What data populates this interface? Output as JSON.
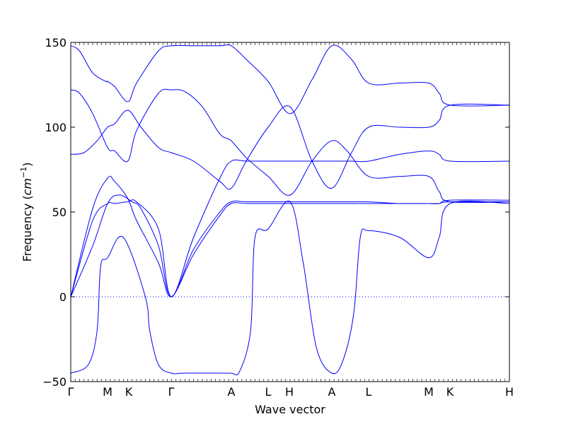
{
  "chart_data": {
    "type": "line",
    "title": "",
    "xlabel": "Wave vector",
    "ylabel_prefix": "Frequency (",
    "ylabel_unit_base": "cm",
    "ylabel_unit_exp": "−1",
    "ylabel_suffix": ")",
    "ylim": [
      -50,
      150
    ],
    "yticks": [
      -50,
      0,
      50,
      100,
      150
    ],
    "ytick_labels": [
      "−50",
      "0",
      "50",
      "100",
      "150"
    ],
    "grid": false,
    "line_color": "#0000ff",
    "zero_line": {
      "y": 0,
      "style": "dotted",
      "color": "#0000ff"
    },
    "x_labels": [
      {
        "label": "Γ",
        "x": 0.0
      },
      {
        "label": "M",
        "x": 0.0839
      },
      {
        "label": "K",
        "x": 0.1323
      },
      {
        "label": "Γ",
        "x": 0.229
      },
      {
        "label": "A",
        "x": 0.3661
      },
      {
        "label": "L",
        "x": 0.45
      },
      {
        "label": "H",
        "x": 0.4984
      },
      {
        "label": "A",
        "x": 0.5952
      },
      {
        "label": "L",
        "x": 0.679
      },
      {
        "label": "M",
        "x": 0.8161
      },
      {
        "label": "K",
        "x": 0.8645
      },
      {
        "label": "H",
        "x": 1.0
      }
    ],
    "series": [
      {
        "values_x": [
          0,
          0.02,
          0.05,
          0.08,
          0.084,
          0.1,
          0.13,
          0.15,
          0.2,
          0.229,
          0.28,
          0.34,
          0.366,
          0.4,
          0.45,
          0.5,
          0.55,
          0.595,
          0.64,
          0.679,
          0.75,
          0.816,
          0.84,
          0.865,
          1.0
        ],
        "values_y": [
          148,
          145,
          132,
          127,
          127,
          124,
          115,
          126,
          145,
          148,
          148,
          148,
          148,
          140,
          127,
          108,
          128,
          148,
          140,
          126,
          126,
          126,
          120,
          113,
          113
        ]
      },
      {
        "values_x": [
          0,
          0.02,
          0.05,
          0.084,
          0.1,
          0.13,
          0.15,
          0.2,
          0.229,
          0.26,
          0.3,
          0.34,
          0.366,
          0.4,
          0.45,
          0.5,
          0.55,
          0.595,
          0.63,
          0.679,
          0.75,
          0.816,
          0.84,
          0.865,
          1.0
        ],
        "values_y": [
          122,
          120,
          108,
          88,
          86,
          80,
          98,
          120,
          122,
          121,
          112,
          96,
          92,
          82,
          71,
          60,
          80,
          92,
          86,
          71,
          71,
          71,
          62,
          56,
          56
        ]
      },
      {
        "values_x": [
          0,
          0.03,
          0.06,
          0.084,
          0.1,
          0.13,
          0.16,
          0.2,
          0.229,
          0.28,
          0.34,
          0.366,
          0.4,
          0.45,
          0.5,
          0.55,
          0.595,
          0.64,
          0.679,
          0.75,
          0.816,
          0.84,
          0.865,
          1.0
        ],
        "values_y": [
          84,
          85,
          92,
          100,
          102,
          110,
          100,
          88,
          85,
          80,
          68,
          64,
          80,
          100,
          112,
          80,
          64,
          85,
          100,
          100,
          100,
          104,
          113,
          113
        ]
      },
      {
        "values_x": [
          0,
          0.05,
          0.084,
          0.1,
          0.13,
          0.15,
          0.2,
          0.229,
          0.28,
          0.34,
          0.366,
          0.4,
          0.45,
          0.5,
          0.55,
          0.595,
          0.64,
          0.679,
          0.75,
          0.816,
          0.84,
          0.865,
          1.0
        ],
        "values_y": [
          0,
          45,
          55,
          55,
          56,
          56,
          40,
          0,
          35,
          70,
          80,
          80,
          80,
          80,
          80,
          80,
          80,
          80,
          84,
          86,
          84,
          80,
          80
        ]
      },
      {
        "values_x": [
          0,
          0.05,
          0.084,
          0.1,
          0.13,
          0.15,
          0.2,
          0.229,
          0.28,
          0.34,
          0.366,
          0.4,
          0.45,
          0.5,
          0.55,
          0.595,
          0.64,
          0.679,
          0.75,
          0.816,
          0.84,
          0.865,
          1.0
        ],
        "values_y": [
          0,
          52,
          70,
          68,
          58,
          45,
          20,
          0,
          25,
          48,
          55,
          55,
          55,
          55,
          55,
          55,
          55,
          55,
          55,
          55,
          55,
          56,
          56
        ]
      },
      {
        "values_x": [
          0,
          0.05,
          0.084,
          0.11,
          0.14,
          0.16,
          0.2,
          0.229,
          0.28,
          0.34,
          0.366,
          0.4,
          0.45,
          0.5,
          0.55,
          0.595,
          0.64,
          0.679,
          0.75,
          0.816,
          0.84,
          0.865,
          1.0
        ],
        "values_y": [
          0,
          30,
          55,
          60,
          56,
          52,
          30,
          0,
          28,
          50,
          56,
          56,
          56,
          56,
          56,
          56,
          56,
          56,
          55,
          55,
          55,
          57,
          57
        ]
      },
      {
        "values_x": [
          0,
          0.04,
          0.06,
          0.068,
          0.084,
          0.12,
          0.17,
          0.18,
          0.2,
          0.229,
          0.26,
          0.34,
          0.366,
          0.385,
          0.41,
          0.42,
          0.45,
          0.5,
          0.53,
          0.56,
          0.595,
          0.62,
          0.645,
          0.66,
          0.679,
          0.75,
          0.816,
          0.84,
          0.865,
          1.0
        ],
        "values_y": [
          -45,
          -40,
          -20,
          18,
          23,
          35,
          0,
          -20,
          -40,
          -45,
          -45,
          -45,
          -45,
          -44,
          -20,
          35,
          40,
          56,
          20,
          -30,
          -45,
          -38,
          -10,
          35,
          39,
          35,
          23,
          35,
          55,
          55
        ]
      }
    ]
  }
}
